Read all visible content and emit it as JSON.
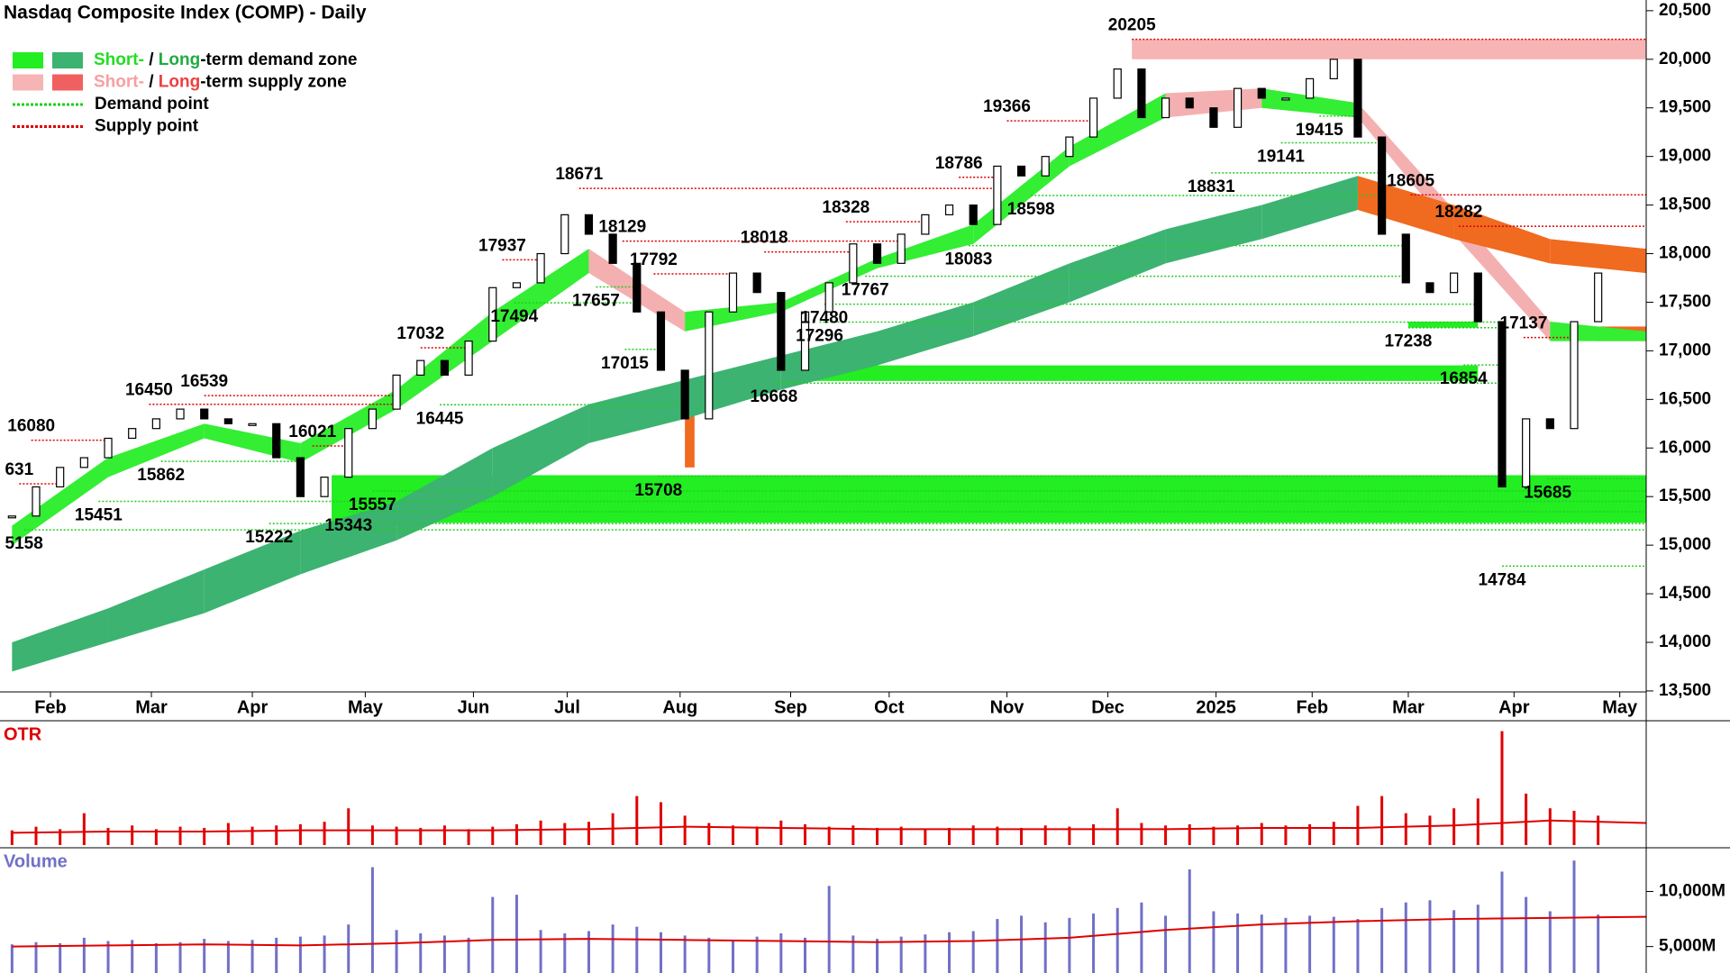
{
  "chart_data": {
    "type": "candlestick",
    "title": "Nasdaq Composite Index (COMP) - Daily",
    "legend": [
      {
        "swatches": [
          "#22ee22",
          "#3cb371"
        ],
        "parts": [
          {
            "text": "Short-",
            "color": "#22dd22"
          },
          {
            "text": " / ",
            "color": "#000000"
          },
          {
            "text": "Long",
            "color": "#22aa44"
          },
          {
            "text": "-term demand zone",
            "color": "#000000"
          }
        ]
      },
      {
        "swatches": [
          "#f6b4b4",
          "#f06060"
        ],
        "parts": [
          {
            "text": "Short-",
            "color": "#f6a0a0"
          },
          {
            "text": " / ",
            "color": "#000000"
          },
          {
            "text": "Long",
            "color": "#ee4040"
          },
          {
            "text": "-term supply zone",
            "color": "#000000"
          }
        ]
      },
      {
        "line": "#22cc22",
        "parts": [
          {
            "text": "Demand point",
            "color": "#000000"
          }
        ]
      },
      {
        "line": "#dd0000",
        "parts": [
          {
            "text": "Supply point",
            "color": "#000000"
          }
        ]
      }
    ],
    "values": [
      15300,
      15600,
      15800,
      15900,
      16100,
      16200,
      16300,
      16400,
      16300,
      16250,
      16250,
      15900,
      15500,
      15700,
      16200,
      16400,
      16750,
      16900,
      16750,
      17100,
      17650,
      17700,
      18000,
      18400,
      18200,
      17900,
      17400,
      16800,
      16300,
      17400,
      17800,
      17600,
      16800,
      17400,
      17700,
      18100,
      17900,
      18200,
      18400,
      18500,
      18300,
      18900,
      18800,
      19000,
      19200,
      19600,
      19900,
      19400,
      19600,
      19500,
      19300,
      19700,
      19600,
      19600,
      19800,
      20000,
      19200,
      18200,
      17700,
      17600,
      17800,
      17300,
      15600,
      16300,
      16200,
      17300,
      17800
    ],
    "xlim": [
      -0.5,
      68
    ],
    "xticks": [
      {
        "value": 1.6,
        "label": "Feb"
      },
      {
        "value": 5.8,
        "label": "Mar"
      },
      {
        "value": 10,
        "label": "Apr"
      },
      {
        "value": 14.7,
        "label": "May"
      },
      {
        "value": 19.2,
        "label": "Jun"
      },
      {
        "value": 23.1,
        "label": "Jul"
      },
      {
        "value": 27.8,
        "label": "Aug"
      },
      {
        "value": 32.4,
        "label": "Sep"
      },
      {
        "value": 36.5,
        "label": "Oct"
      },
      {
        "value": 41.4,
        "label": "Nov"
      },
      {
        "value": 45.6,
        "label": "Dec"
      },
      {
        "value": 50.1,
        "label": "2025"
      },
      {
        "value": 54.1,
        "label": "Feb"
      },
      {
        "value": 58.1,
        "label": "Mar"
      },
      {
        "value": 62.5,
        "label": "Apr"
      },
      {
        "value": 66.9,
        "label": "May"
      }
    ],
    "ylim": [
      13490,
      20610
    ],
    "yticks": [
      {
        "value": 13500,
        "label": "13,500"
      },
      {
        "value": 14000,
        "label": "14,000"
      },
      {
        "value": 14500,
        "label": "14,500"
      },
      {
        "value": 15000,
        "label": "15,000"
      },
      {
        "value": 15500,
        "label": "15,500"
      },
      {
        "value": 16000,
        "label": "16,000"
      },
      {
        "value": 16500,
        "label": "16,500"
      },
      {
        "value": 17000,
        "label": "17,000"
      },
      {
        "value": 17500,
        "label": "17,500"
      },
      {
        "value": 18000,
        "label": "18,000"
      },
      {
        "value": 18500,
        "label": "18,500"
      },
      {
        "value": 19000,
        "label": "19,000"
      },
      {
        "value": 19500,
        "label": "19,500"
      },
      {
        "value": 20000,
        "label": "20,000"
      },
      {
        "value": 20500,
        "label": "20,500"
      }
    ],
    "point_colors": {
      "demand": "#22cc22",
      "supply": "#dd0000"
    },
    "annotations": [
      {
        "label": "631",
        "x": 0.3,
        "y": 15631
      },
      {
        "label": "5158",
        "x": 0.5,
        "y": 15158
      },
      {
        "label": "16080",
        "x": 0.8,
        "y": 16080
      },
      {
        "label": "15862",
        "x": 6.2,
        "y": 15862
      },
      {
        "label": "15451",
        "x": 3.6,
        "y": 15451
      },
      {
        "label": "16450",
        "x": 5.7,
        "y": 16450
      },
      {
        "label": "16539",
        "x": 8.0,
        "y": 16539
      },
      {
        "label": "16021",
        "x": 12.5,
        "y": 16021
      },
      {
        "label": "15222",
        "x": 10.7,
        "y": 15222
      },
      {
        "label": "15557",
        "x": 15,
        "y": 15557
      },
      {
        "label": "15343",
        "x": 14,
        "y": 15343
      },
      {
        "label": "17032",
        "x": 17,
        "y": 17032
      },
      {
        "label": "16445",
        "x": 17.8,
        "y": 16445
      },
      {
        "label": "17937",
        "x": 20.4,
        "y": 17937
      },
      {
        "label": "17494",
        "x": 20.9,
        "y": 17494
      },
      {
        "label": "18671",
        "x": 23.6,
        "y": 18671
      },
      {
        "label": "18129",
        "x": 25.4,
        "y": 18129
      },
      {
        "label": "17657",
        "x": 24.3,
        "y": 17657
      },
      {
        "label": "17792",
        "x": 26.7,
        "y": 17792
      },
      {
        "label": "17015",
        "x": 25.5,
        "y": 17015
      },
      {
        "label": "15708",
        "x": 26.9,
        "y": 15708
      },
      {
        "label": "18018",
        "x": 31.3,
        "y": 18018
      },
      {
        "label": "17480",
        "x": 33.8,
        "y": 17480
      },
      {
        "label": "17296",
        "x": 33.6,
        "y": 17296
      },
      {
        "label": "16668",
        "x": 31.7,
        "y": 16668
      },
      {
        "label": "18328",
        "x": 34.7,
        "y": 18328
      },
      {
        "label": "17767",
        "x": 35.5,
        "y": 17767
      },
      {
        "label": "18786",
        "x": 39.4,
        "y": 18786
      },
      {
        "label": "18083",
        "x": 39.8,
        "y": 18083
      },
      {
        "label": "18598",
        "x": 42.4,
        "y": 18598
      },
      {
        "label": "19366",
        "x": 41.4,
        "y": 19366
      },
      {
        "label": "20205",
        "x": 46.6,
        "y": 20205
      },
      {
        "label": "18831",
        "x": 49.9,
        "y": 18831
      },
      {
        "label": "19141",
        "x": 52.8,
        "y": 19141
      },
      {
        "label": "19415",
        "x": 54.4,
        "y": 19415
      },
      {
        "label": "18605",
        "x": 58.2,
        "y": 18605
      },
      {
        "label": "18282",
        "x": 60.2,
        "y": 18282
      },
      {
        "label": "17238",
        "x": 58.1,
        "y": 17238
      },
      {
        "label": "16854",
        "x": 60.4,
        "y": 16854
      },
      {
        "label": "17137",
        "x": 62.9,
        "y": 17137
      },
      {
        "label": "14784",
        "x": 62,
        "y": 14784
      },
      {
        "label": "15685",
        "x": 63.9,
        "y": 15685
      }
    ],
    "bands": {
      "x": [
        0,
        4,
        8,
        12,
        16,
        20,
        24,
        28,
        32,
        36,
        40,
        44,
        48,
        52,
        56,
        60,
        64,
        68
      ],
      "short_lower": [
        15000,
        15700,
        16100,
        15850,
        16400,
        17100,
        17800,
        17200,
        17400,
        17850,
        18100,
        18900,
        19400,
        19500,
        19400,
        18200,
        17100,
        17100
      ],
      "short_upper": [
        15200,
        15900,
        16250,
        16050,
        16600,
        17400,
        18050,
        17400,
        17500,
        17950,
        18300,
        19100,
        19650,
        19700,
        19550,
        18450,
        17300,
        17200
      ],
      "long_lower": [
        13700,
        14000,
        14300,
        14700,
        15050,
        15500,
        16050,
        16300,
        16600,
        16850,
        17150,
        17500,
        17900,
        18150,
        18450,
        18150,
        17900,
        17800
      ],
      "long_upper": [
        14000,
        14350,
        14750,
        15150,
        15450,
        16000,
        16450,
        16700,
        16950,
        17200,
        17500,
        17900,
        18250,
        18500,
        18800,
        18500,
        18150,
        18050
      ],
      "colors": {
        "short_up": "#33ee33",
        "short_down": "#f4b0b0",
        "long_up": "#3cb371",
        "long_down": "#f06a20"
      }
    },
    "zones": [
      {
        "x": [
          46.6,
          68
        ],
        "y": [
          20000,
          20205
        ],
        "color": "#f6b4b4"
      },
      {
        "x": [
          13.3,
          68
        ],
        "y": [
          15230,
          15720
        ],
        "color": "#22ee22"
      },
      {
        "x": [
          32.8,
          61
        ],
        "y": [
          16690,
          16850
        ],
        "color": "#22ee22"
      },
      {
        "x": [
          58.1,
          61
        ],
        "y": [
          17238,
          17300
        ],
        "color": "#22ee22"
      },
      {
        "x": [
          28.0,
          28.4
        ],
        "y": [
          15800,
          16600
        ],
        "color": "#f06a20"
      },
      {
        "x": [
          65.9,
          68
        ],
        "y": [
          17100,
          17250
        ],
        "color": "#f06a20"
      }
    ],
    "otr": {
      "label": "OTR",
      "color": "#e00000",
      "ylim": [
        0,
        10
      ],
      "values": [
        1.2,
        1.5,
        1.3,
        2.6,
        1.4,
        1.6,
        1.3,
        1.5,
        1.4,
        1.8,
        1.5,
        1.6,
        1.7,
        1.9,
        3.0,
        1.6,
        1.5,
        1.4,
        1.6,
        1.3,
        1.5,
        1.7,
        2.0,
        1.8,
        1.9,
        2.6,
        4.0,
        3.5,
        2.4,
        1.8,
        1.6,
        1.5,
        2.0,
        1.7,
        1.5,
        1.6,
        1.4,
        1.5,
        1.3,
        1.4,
        1.6,
        1.5,
        1.4,
        1.6,
        1.5,
        1.7,
        3.0,
        1.8,
        1.6,
        1.7,
        1.5,
        1.6,
        1.8,
        1.6,
        1.7,
        1.9,
        3.2,
        4.0,
        2.6,
        2.4,
        3.0,
        3.8,
        9.3,
        4.2,
        3.0,
        2.8,
        2.4
      ],
      "avg": [
        1.0,
        1.1,
        1.1,
        1.2,
        1.2,
        1.2,
        1.3,
        1.5,
        1.4,
        1.3,
        1.3,
        1.3,
        1.3,
        1.4,
        1.4,
        1.6,
        2.0,
        1.8
      ]
    },
    "volume": {
      "label": "Volume",
      "color": "#7070c8",
      "avg_color": "#e00000",
      "ylim": [
        2600,
        13800
      ],
      "yticks": [
        {
          "value": 5000,
          "label": "5,000M"
        },
        {
          "value": 10000,
          "label": "10,000M"
        }
      ],
      "values": [
        5200,
        5400,
        5300,
        5800,
        5500,
        5600,
        5300,
        5400,
        5700,
        5500,
        5600,
        5800,
        5900,
        6000,
        7000,
        12200,
        6500,
        6200,
        6000,
        5800,
        9500,
        9700,
        6500,
        6200,
        6400,
        7000,
        6800,
        6300,
        6000,
        5800,
        5600,
        5900,
        6200,
        5800,
        10500,
        6000,
        5700,
        5900,
        6100,
        6300,
        6400,
        7500,
        7800,
        7200,
        7600,
        8000,
        8500,
        9000,
        7800,
        12000,
        8200,
        8000,
        7900,
        7600,
        7800,
        7700,
        7500,
        8500,
        9000,
        9200,
        8300,
        8800,
        11800,
        9500,
        8200,
        12800,
        7900
      ],
      "avg": [
        5000,
        5100,
        5200,
        5100,
        5300,
        5600,
        5700,
        5600,
        5500,
        5400,
        5500,
        5800,
        6500,
        7000,
        7300,
        7500,
        7600,
        7700
      ]
    }
  }
}
